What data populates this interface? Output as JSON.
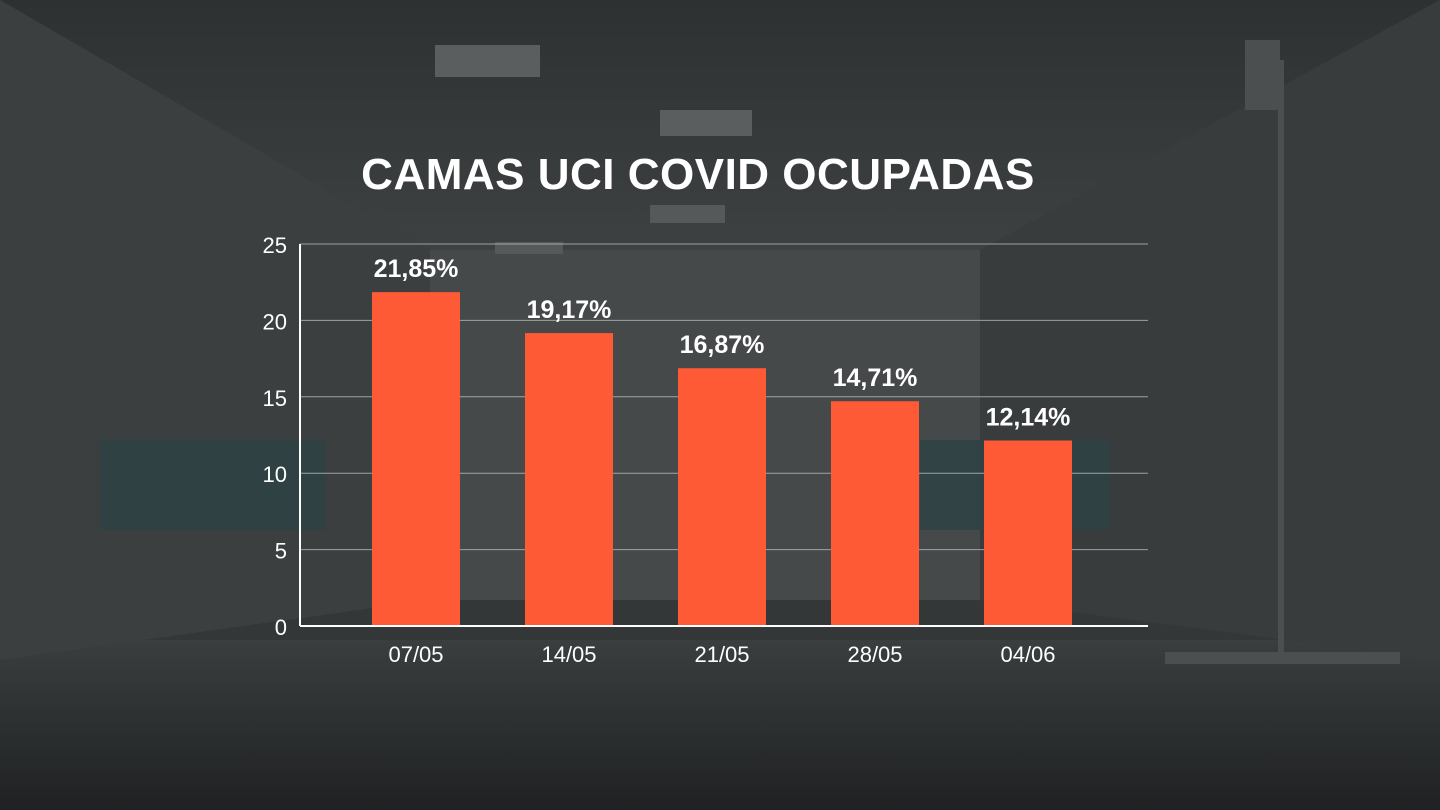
{
  "chart_data": {
    "type": "bar",
    "title": "CAMAS UCI COVID OCUPADAS",
    "categories": [
      "07/05",
      "14/05",
      "21/05",
      "28/05",
      "04/06"
    ],
    "values": [
      21.85,
      19.17,
      16.87,
      14.71,
      12.14
    ],
    "data_labels": [
      "21,85%",
      "19,17%",
      "16,87%",
      "14,71%",
      "12,14%"
    ],
    "yticks": [
      "0",
      "5",
      "10",
      "15",
      "20",
      "25"
    ],
    "ylim": [
      0,
      25
    ],
    "xlabel": "",
    "ylabel": "",
    "grid": true,
    "legend": "none",
    "bar_color": "#ff5a36",
    "text_color": "#ffffff",
    "grid_color": "#bfc3c4"
  }
}
